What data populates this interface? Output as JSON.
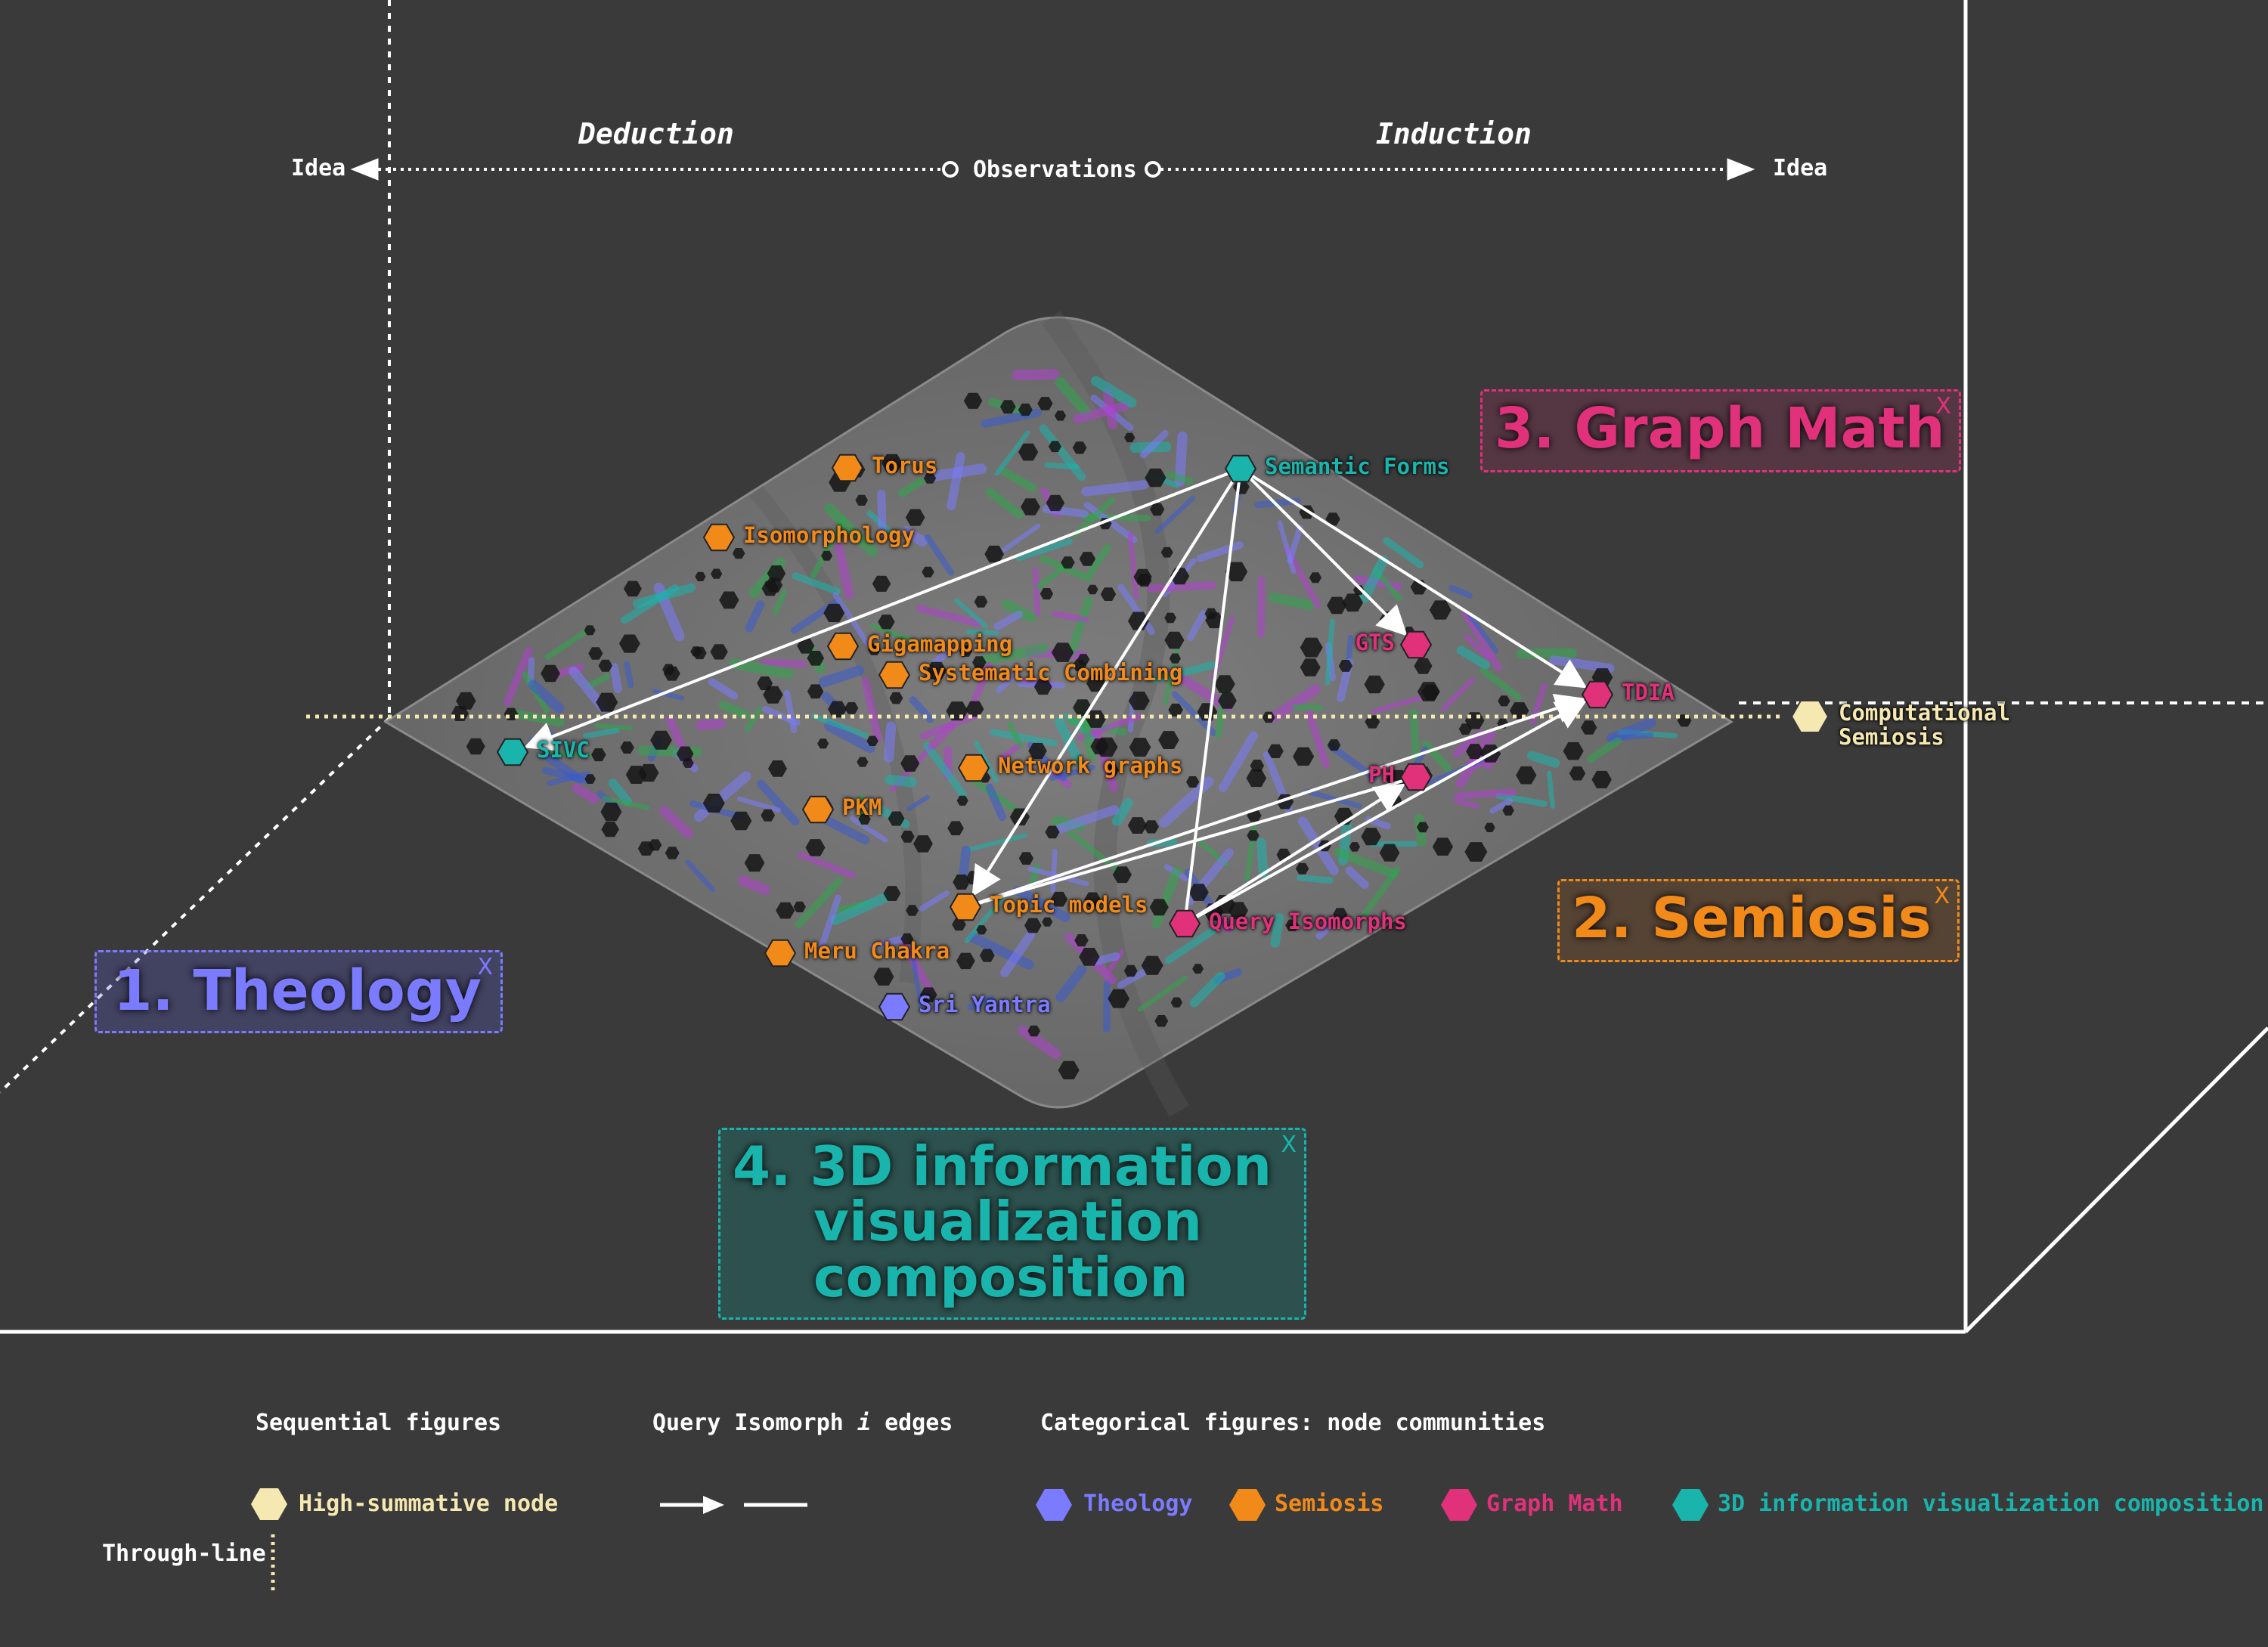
{
  "axis": {
    "idea_left": "Idea",
    "deduction": "Deduction",
    "observations": "Observations",
    "induction": "Induction",
    "idea_right": "Idea"
  },
  "through_line_node": {
    "line1": "Computational",
    "line2": "Semiosis",
    "color": "#f5e8b0"
  },
  "nodes": [
    {
      "id": "torus",
      "label": "Torus",
      "community": "semiosis"
    },
    {
      "id": "isomorphology",
      "label": "Isomorphology",
      "community": "semiosis"
    },
    {
      "id": "gigamapping",
      "label": "Gigamapping",
      "community": "semiosis"
    },
    {
      "id": "systematic-combining",
      "label": "Systematic Combining",
      "community": "semiosis"
    },
    {
      "id": "network-graphs",
      "label": "Network graphs",
      "community": "semiosis"
    },
    {
      "id": "pkm",
      "label": "PKM",
      "community": "semiosis"
    },
    {
      "id": "topic-models",
      "label": "Topic models",
      "community": "semiosis"
    },
    {
      "id": "meru-chakra",
      "label": "Meru Chakra",
      "community": "semiosis"
    },
    {
      "id": "sri-yantra",
      "label": "Sri Yantra",
      "community": "theology"
    },
    {
      "id": "semantic-forms",
      "label": "Semantic Forms",
      "community": "viz3d"
    },
    {
      "id": "sivc",
      "label": "SIVC",
      "community": "viz3d"
    },
    {
      "id": "gts",
      "label": "GTS",
      "community": "graphmath"
    },
    {
      "id": "tdia",
      "label": "TDIA",
      "community": "graphmath"
    },
    {
      "id": "ph",
      "label": "PH",
      "community": "graphmath"
    },
    {
      "id": "query-isomorphs",
      "label": "Query Isomorphs",
      "community": "graphmath"
    }
  ],
  "edges": [
    {
      "from": "semantic-forms",
      "to": "sivc",
      "arrow": true
    },
    {
      "from": "semantic-forms",
      "to": "topic-models",
      "arrow": true
    },
    {
      "from": "semantic-forms",
      "to": "query-isomorphs",
      "arrow": false
    },
    {
      "from": "semantic-forms",
      "to": "gts",
      "arrow": true
    },
    {
      "from": "semantic-forms",
      "to": "tdia",
      "arrow": true
    },
    {
      "from": "topic-models",
      "to": "tdia",
      "arrow": true
    },
    {
      "from": "topic-models",
      "to": "ph",
      "arrow": false
    },
    {
      "from": "query-isomorphs",
      "to": "ph",
      "arrow": true
    },
    {
      "from": "query-isomorphs",
      "to": "tdia",
      "arrow": true
    }
  ],
  "communities": {
    "theology": {
      "name": "Theology",
      "color": "#7b7bff"
    },
    "semiosis": {
      "name": "Semiosis",
      "color": "#f28a1a"
    },
    "graphmath": {
      "name": "Graph Math",
      "color": "#e0317a"
    },
    "viz3d": {
      "name": "3D information visualization composition",
      "color": "#19b5ad"
    }
  },
  "boxes": {
    "theology": {
      "title": "1. Theology",
      "close": "X"
    },
    "semiosis": {
      "title": "2. Semiosis",
      "close": "X"
    },
    "graphmath": {
      "title": "3. Graph Math",
      "close": "X"
    },
    "viz3d": {
      "line1": "4. 3D information",
      "line2": "visualization",
      "line3": "composition",
      "close": "X"
    }
  },
  "legend": {
    "sequential_title": "Sequential figures",
    "high_summative": "High-summative node",
    "through_line": "Through-line",
    "query_edges_title_a": "Query Isomorph",
    "query_edges_title_i": "i",
    "query_edges_title_b": "edges",
    "categorical_title": "Categorical figures: node communities",
    "theology": "Theology",
    "semiosis": "Semiosis",
    "graphmath": "Graph Math",
    "viz3d": "3D information visualization composition"
  }
}
